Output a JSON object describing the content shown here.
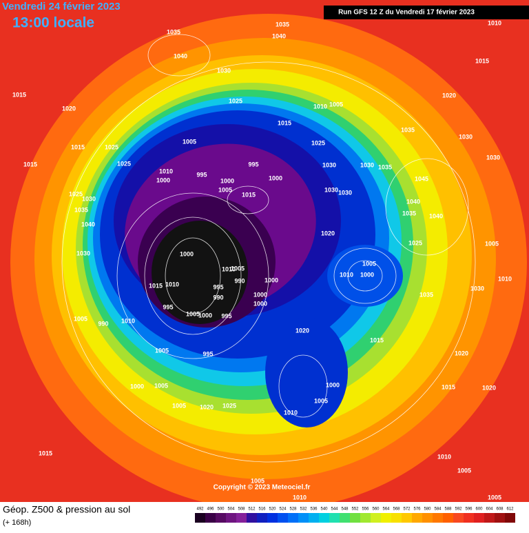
{
  "header": {
    "date": "Vendredi 24 février 2023",
    "time": "13:00 locale",
    "run": "Run GFS 12 Z du Vendredi 17 février 2023"
  },
  "copyright": "Copyright © 2023 Meteociel.fr",
  "footer": {
    "title": "Géop. Z500 & pression au sol",
    "lead": "(+ 168h)"
  },
  "colorbar": {
    "labels": [
      492,
      496,
      500,
      504,
      508,
      512,
      516,
      520,
      524,
      528,
      532,
      536,
      540,
      544,
      548,
      552,
      556,
      560,
      564,
      568,
      572,
      576,
      580,
      584,
      588,
      592,
      596,
      600,
      604,
      608,
      612
    ],
    "colors": [
      "#1a0020",
      "#3a0046",
      "#560a62",
      "#6e1480",
      "#84209a",
      "#3010a0",
      "#1020c0",
      "#0030e0",
      "#0050f0",
      "#0070f8",
      "#0090f8",
      "#00b0f0",
      "#00d0e0",
      "#20e0b0",
      "#40e070",
      "#70e040",
      "#a0e830",
      "#d0f020",
      "#f0f000",
      "#f8e000",
      "#ffc800",
      "#ffa800",
      "#ff9000",
      "#ff7800",
      "#ff6000",
      "#f84820",
      "#f03020",
      "#e02020",
      "#c01818",
      "#a01010",
      "#800808"
    ]
  },
  "pressure_labels": [
    1035,
    1040,
    1035,
    1040,
    1030,
    1010,
    1015,
    1015,
    1020,
    1025,
    1010,
    1005,
    1015,
    1020,
    1035,
    1030,
    1015,
    1025,
    1005,
    1025,
    1015,
    1025,
    995,
    1030,
    1030,
    1035,
    1030,
    1010,
    995,
    1000,
    1000,
    1000,
    1045,
    1025,
    1030,
    1005,
    1030,
    1030,
    1015,
    1040,
    1035,
    1040,
    1035,
    1040,
    1020,
    1025,
    1005,
    1030,
    1000,
    1005,
    1010,
    1000,
    1010,
    1005,
    990,
    1000,
    1030,
    1010,
    1015,
    1010,
    995,
    990,
    1000,
    1000,
    1035,
    995,
    1005,
    1000,
    995,
    1020,
    1005,
    990,
    1010,
    1015,
    1005,
    995,
    1020,
    1000,
    1005,
    1000,
    1015,
    1020,
    1005,
    1020,
    1025,
    1005,
    1010,
    1015,
    1010,
    1005,
    1005,
    1010,
    1005
  ]
}
